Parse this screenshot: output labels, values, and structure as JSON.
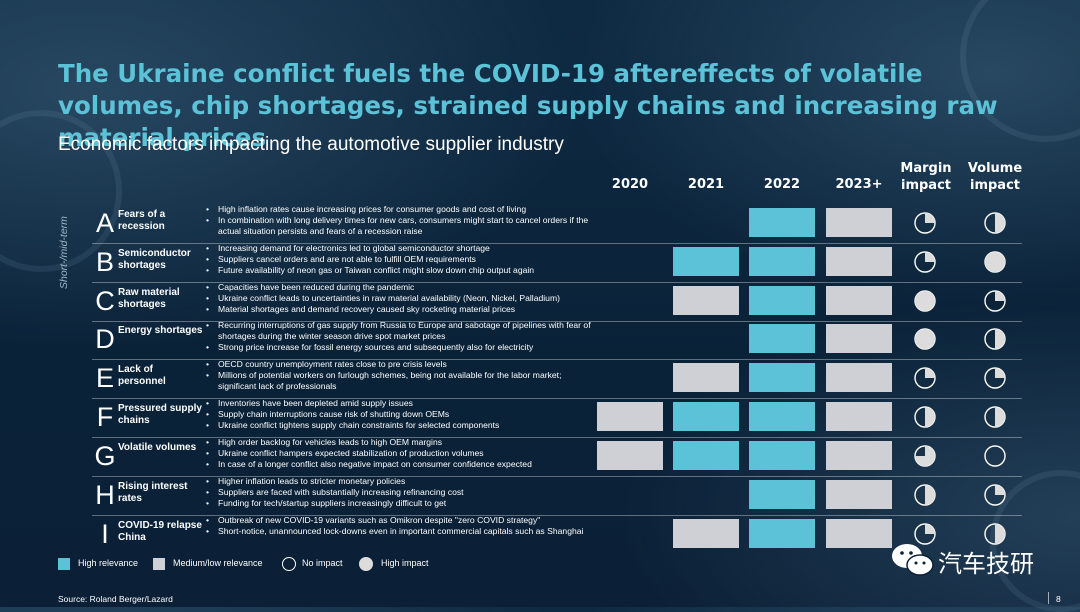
{
  "title": "The Ukraine conflict fuels the COVID-19 aftereffects of volatile volumes, chip shortages, strained supply chains and increasing raw material prices",
  "subtitle": "Economic factors impacting the automotive supplier industry",
  "side_label": "Short-/mid-term",
  "columns": {
    "years": [
      "2020",
      "2021",
      "2022",
      "2023+"
    ],
    "margin_impact": "Margin impact",
    "volume_impact": "Volume impact"
  },
  "colors": {
    "high": "#5bc2d8",
    "medium_low": "#cfd0d6",
    "title": "#5bc2d8"
  },
  "rows": [
    {
      "letter": "A",
      "label": "Fears of a recession",
      "bullets": [
        "High inflation rates cause increasing prices for consumer goods and cost of living",
        "In combination with long delivery times for new cars, consumers might start to cancel orders if the actual situation persists and fears of a recession raise"
      ],
      "relevance": [
        "none",
        "none",
        "high",
        "medium_low"
      ],
      "margin_impact": 0.25,
      "volume_impact": 0.5
    },
    {
      "letter": "B",
      "label": "Semiconductor shortages",
      "bullets": [
        "Increasing demand for electronics led to global semiconductor shortage",
        "Suppliers cancel orders and are not able to fulfill OEM requirements",
        "Future availability of neon gas or Taiwan conflict might slow down chip output again"
      ],
      "relevance": [
        "none",
        "high",
        "high",
        "medium_low"
      ],
      "margin_impact": 0.25,
      "volume_impact": 1.0
    },
    {
      "letter": "C",
      "label": "Raw material shortages",
      "bullets": [
        "Capacities have been reduced during the pandemic",
        "Ukraine conflict leads to uncertainties in raw material availability (Neon, Nickel, Palladium)",
        "Material shortages and demand recovery caused sky rocketing material prices"
      ],
      "relevance": [
        "none",
        "medium_low",
        "high",
        "medium_low"
      ],
      "margin_impact": 1.0,
      "volume_impact": 0.25
    },
    {
      "letter": "D",
      "label": "Energy shortages",
      "bullets": [
        "Recurring interruptions of gas supply from Russia to Europe and sabotage of pipelines with fear of shortages during the winter season drive spot market prices",
        "Strong price increase for fossil energy sources and subsequently also for electricity"
      ],
      "relevance": [
        "none",
        "none",
        "high",
        "medium_low"
      ],
      "margin_impact": 1.0,
      "volume_impact": 0.5
    },
    {
      "letter": "E",
      "label": "Lack of personnel",
      "bullets": [
        "OECD country unemployment rates close to pre crisis levels",
        "Millions of potential workers on furlough schemes, being not available for the labor market; significant lack of professionals"
      ],
      "relevance": [
        "none",
        "medium_low",
        "high",
        "medium_low"
      ],
      "margin_impact": 0.25,
      "volume_impact": 0.25
    },
    {
      "letter": "F",
      "label": "Pressured supply chains",
      "bullets": [
        "Inventories have been depleted amid supply issues",
        "Supply chain interruptions cause risk of shutting down OEMs",
        "Ukraine conflict tightens supply chain constraints for selected components"
      ],
      "relevance": [
        "medium_low",
        "high",
        "high",
        "medium_low"
      ],
      "margin_impact": 0.5,
      "volume_impact": 0.5
    },
    {
      "letter": "G",
      "label": "Volatile volumes",
      "bullets": [
        "High order backlog for vehicles leads to high OEM margins",
        "Ukraine conflict hampers expected stabilization of production volumes",
        "In case of a longer conflict also negative impact on consumer confidence expected"
      ],
      "relevance": [
        "medium_low",
        "high",
        "high",
        "medium_low"
      ],
      "margin_impact": 0.75,
      "volume_impact": 0.0
    },
    {
      "letter": "H",
      "label": "Rising interest rates",
      "bullets": [
        "Higher inflation leads to stricter monetary policies",
        "Suppliers are faced with substantially increasing refinancing cost",
        "Funding for tech/startup suppliers increasingly difficult to get"
      ],
      "relevance": [
        "none",
        "none",
        "high",
        "medium_low"
      ],
      "margin_impact": 0.5,
      "volume_impact": 0.25
    },
    {
      "letter": "I",
      "label": "COVID-19 relapse China",
      "bullets": [
        "Outbreak of new COVID-19 variants such as Omikron despite \"zero COVID strategy\"",
        "Short-notice, unannounced lock-downs even in important commercial capitals such as Shanghai"
      ],
      "relevance": [
        "none",
        "medium_low",
        "high",
        "medium_low"
      ],
      "margin_impact": 0.25,
      "volume_impact": 0.5
    }
  ],
  "legend": {
    "high_relevance": "High relevance",
    "medium_low_relevance": "Medium/low relevance",
    "no_impact": "No impact",
    "high_impact": "High impact"
  },
  "source": "Source: Roland Berger/Lazard",
  "page_number": "8",
  "watermark": "汽车技研"
}
